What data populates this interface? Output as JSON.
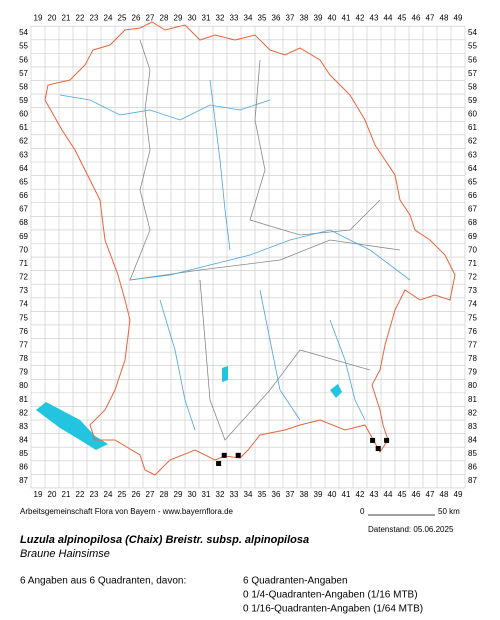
{
  "map": {
    "x_labels": [
      19,
      20,
      21,
      22,
      23,
      24,
      25,
      26,
      27,
      28,
      29,
      30,
      31,
      32,
      33,
      34,
      35,
      36,
      37,
      38,
      39,
      40,
      41,
      42,
      43,
      44,
      45,
      46,
      47,
      48,
      49
    ],
    "y_labels": [
      54,
      55,
      56,
      57,
      58,
      59,
      60,
      61,
      62,
      63,
      64,
      65,
      66,
      67,
      68,
      69,
      70,
      71,
      72,
      73,
      74,
      75,
      76,
      77,
      78,
      79,
      80,
      81,
      82,
      83,
      84,
      85,
      86,
      87
    ],
    "records": [
      [
        42.9,
        84.0
      ],
      [
        43.9,
        84.0
      ],
      [
        43.3,
        84.6
      ],
      [
        32.3,
        85.1
      ],
      [
        33.3,
        85.1
      ],
      [
        31.9,
        85.7
      ]
    ],
    "credit": "Arbeitsgemeinschaft Flora von Bayern - www.bayernflora.de",
    "scale_start": "0",
    "scale_end": "50 km",
    "date": "Datenstand: 05.06.2025"
  },
  "species": {
    "name": "Luzula alpinopilosa (Chaix) Breistr. subsp. alpinopilosa",
    "common": "Braune Hainsimse"
  },
  "summary": {
    "total": "6 Angaben aus 6 Quadranten, davon:",
    "details": [
      "6 Quadranten-Angaben",
      "0 1/4-Quadranten-Angaben (1/16 MTB)",
      "0 1/16-Quadranten-Angaben (1/64 MTB)"
    ]
  }
}
